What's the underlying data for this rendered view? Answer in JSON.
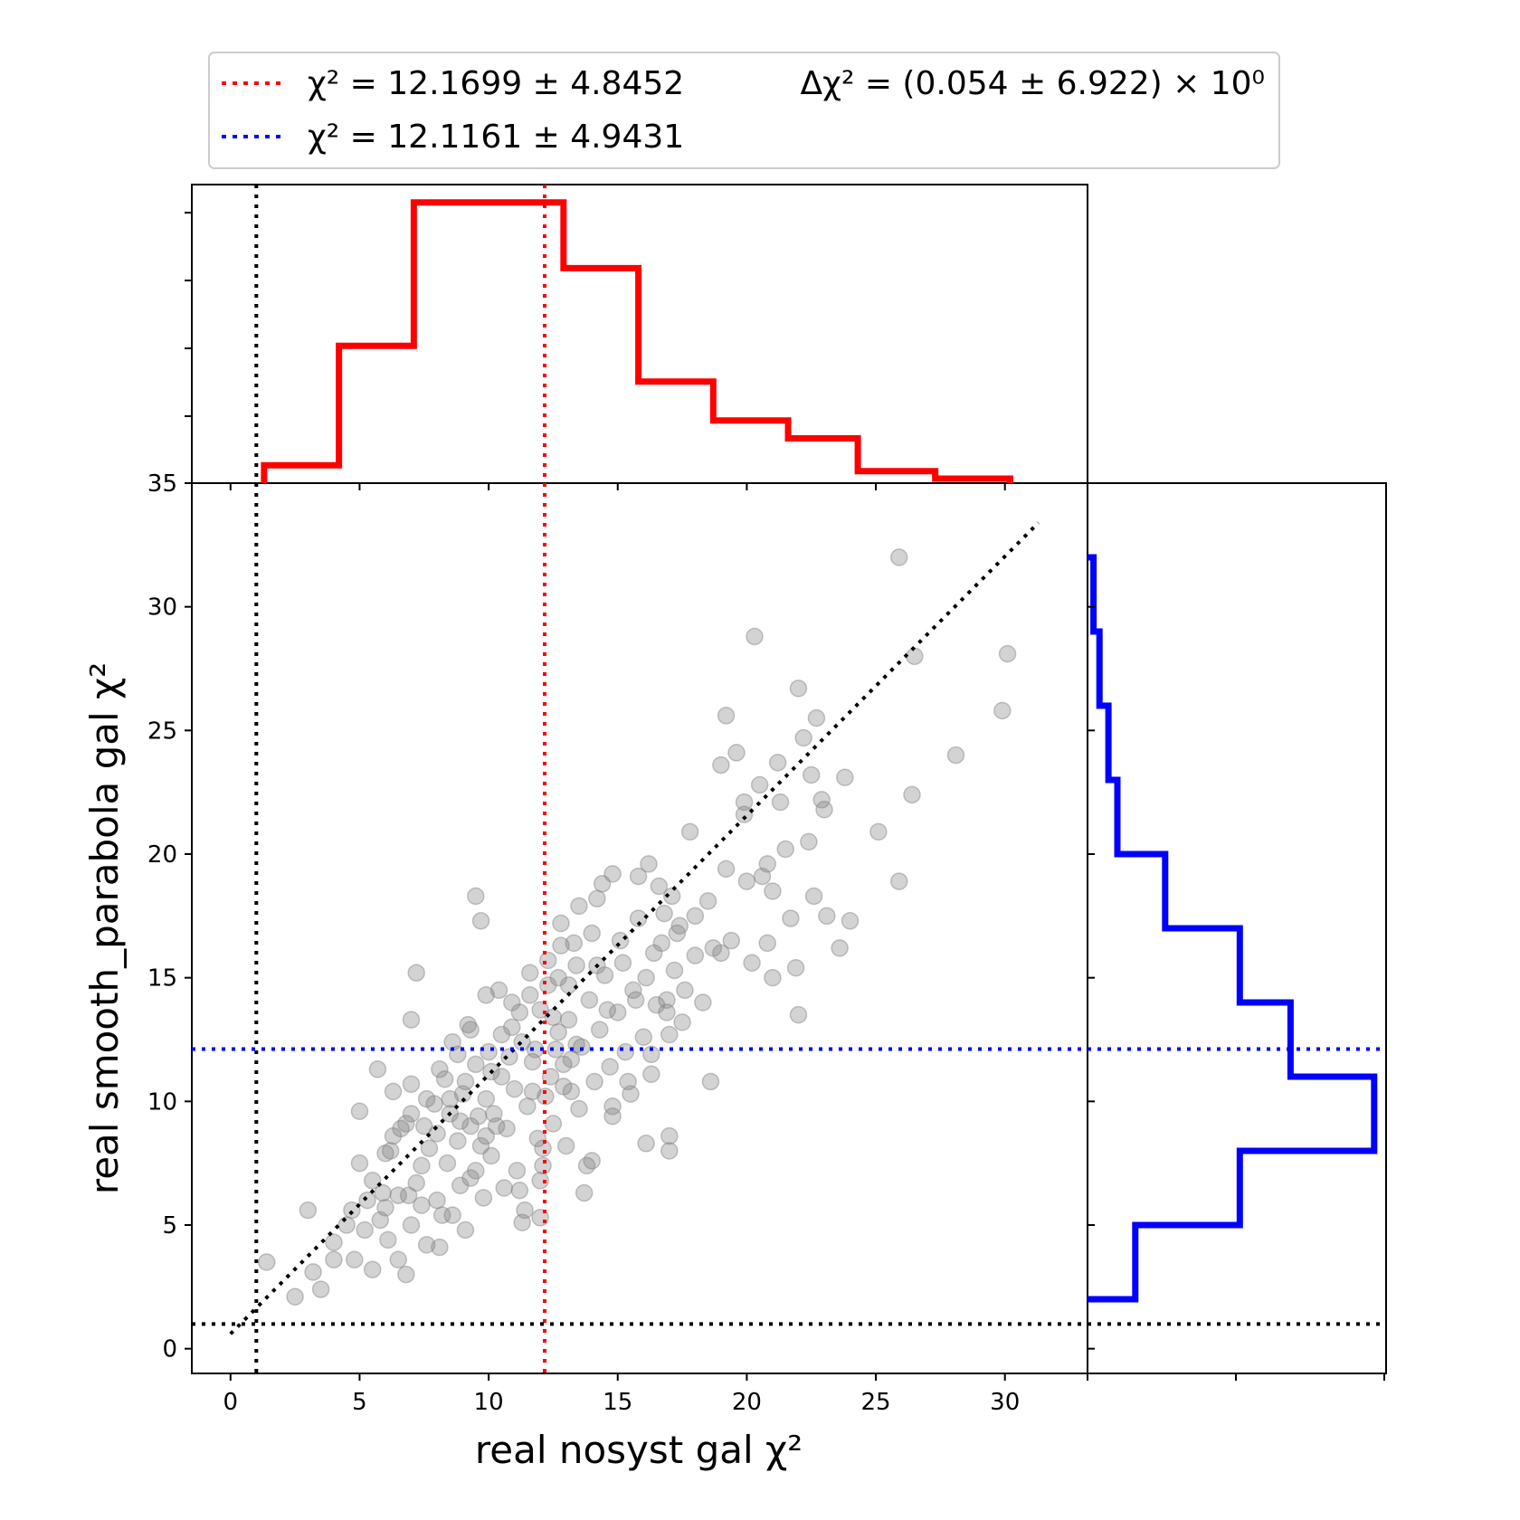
{
  "chart_data": {
    "type": "scatter",
    "title": "",
    "xlabel": "real nosyst gal χ²",
    "ylabel": "real smooth_parabola gal χ²",
    "xlim": [
      -1.5,
      33.2
    ],
    "ylim": [
      -1,
      35
    ],
    "x_ticks": [
      "0",
      "5",
      "10",
      "15",
      "20",
      "25",
      "30"
    ],
    "y_ticks": [
      "0",
      "5",
      "10",
      "15",
      "20",
      "25",
      "30",
      "35"
    ],
    "grid": false,
    "legend": {
      "placement": "top",
      "entries": [
        {
          "label": "χ² = 12.1699 ± 4.8452",
          "color": "#ff0000",
          "style": "dotted"
        },
        {
          "label": "χ² = 12.1161 ± 4.9431",
          "color": "#0000ff",
          "style": "dotted"
        }
      ],
      "annotation": "Δχ² = (0.054 ± 6.922) × 10⁰"
    },
    "reference_lines": {
      "x_vline_black": 1.0,
      "y_hline_black": 1.0,
      "x_mean_red": 12.1699,
      "y_mean_blue": 12.1161,
      "diagonal_black": [
        [
          0,
          0.6
        ],
        [
          31.3,
          33.4
        ]
      ]
    },
    "colors": {
      "x_marginal": "#ff0000",
      "y_marginal": "#0000ff",
      "points": "#808080",
      "reference": "#000000"
    },
    "x_histogram": {
      "bin_edges": [
        1.3,
        4.2,
        7.1,
        12.9,
        15.8,
        18.7,
        21.6,
        24.3,
        27.3,
        30.2
      ],
      "relative_heights": [
        0.06,
        0.46,
        0.94,
        0.72,
        0.34,
        0.21,
        0.15,
        0.04,
        0.015
      ]
    },
    "y_histogram": {
      "bin_edges": [
        2.0,
        5.0,
        8.0,
        11.0,
        14.0,
        17.0,
        20.0,
        23.0,
        26.0,
        29.0,
        32.0
      ],
      "relative_heights": [
        0.16,
        0.51,
        0.96,
        0.68,
        0.51,
        0.26,
        0.1,
        0.07,
        0.04,
        0.02
      ]
    },
    "points": [
      [
        1.4,
        3.5
      ],
      [
        2.5,
        2.1
      ],
      [
        3.0,
        5.6
      ],
      [
        3.5,
        2.4
      ],
      [
        3.2,
        3.1
      ],
      [
        4.0,
        4.3
      ],
      [
        4.5,
        5.0
      ],
      [
        4.8,
        3.6
      ],
      [
        5.0,
        7.5
      ],
      [
        5.2,
        4.8
      ],
      [
        5.5,
        3.2
      ],
      [
        5.5,
        6.8
      ],
      [
        5.8,
        5.2
      ],
      [
        6.0,
        7.9
      ],
      [
        6.1,
        4.4
      ],
      [
        6.3,
        8.6
      ],
      [
        6.5,
        6.2
      ],
      [
        6.5,
        3.6
      ],
      [
        6.8,
        9.1
      ],
      [
        7.0,
        5.0
      ],
      [
        7.0,
        10.7
      ],
      [
        7.2,
        6.7
      ],
      [
        7.4,
        7.4
      ],
      [
        7.6,
        4.2
      ],
      [
        7.7,
        8.1
      ],
      [
        7.9,
        9.9
      ],
      [
        8.0,
        6.0
      ],
      [
        8.1,
        11.3
      ],
      [
        8.2,
        5.4
      ],
      [
        8.4,
        7.5
      ],
      [
        8.5,
        9.5
      ],
      [
        8.6,
        12.4
      ],
      [
        8.8,
        8.4
      ],
      [
        8.9,
        6.6
      ],
      [
        9.0,
        10.3
      ],
      [
        9.1,
        4.8
      ],
      [
        9.2,
        13.1
      ],
      [
        9.3,
        9.0
      ],
      [
        9.5,
        7.2
      ],
      [
        9.5,
        11.5
      ],
      [
        9.7,
        8.2
      ],
      [
        9.8,
        6.1
      ],
      [
        9.9,
        10.1
      ],
      [
        10.0,
        12.0
      ],
      [
        10.1,
        7.8
      ],
      [
        10.2,
        9.5
      ],
      [
        10.4,
        14.5
      ],
      [
        10.5,
        11.0
      ],
      [
        10.6,
        6.5
      ],
      [
        10.7,
        8.9
      ],
      [
        10.9,
        13.0
      ],
      [
        11.0,
        10.5
      ],
      [
        11.1,
        7.2
      ],
      [
        11.3,
        12.4
      ],
      [
        11.4,
        5.6
      ],
      [
        11.5,
        9.8
      ],
      [
        11.6,
        15.2
      ],
      [
        11.7,
        11.6
      ],
      [
        11.9,
        8.5
      ],
      [
        12.0,
        13.7
      ],
      [
        12.0,
        6.8
      ],
      [
        12.2,
        10.2
      ],
      [
        12.3,
        14.7
      ],
      [
        12.4,
        11.0
      ],
      [
        12.5,
        9.1
      ],
      [
        12.7,
        12.8
      ],
      [
        12.8,
        16.3
      ],
      [
        12.9,
        10.6
      ],
      [
        13.0,
        8.2
      ],
      [
        13.1,
        13.3
      ],
      [
        13.2,
        11.7
      ],
      [
        13.4,
        15.5
      ],
      [
        13.5,
        9.7
      ],
      [
        13.6,
        12.2
      ],
      [
        13.8,
        7.4
      ],
      [
        13.9,
        14.1
      ],
      [
        14.0,
        16.8
      ],
      [
        14.1,
        10.8
      ],
      [
        14.3,
        12.9
      ],
      [
        14.4,
        18.8
      ],
      [
        14.5,
        15.1
      ],
      [
        14.7,
        11.4
      ],
      [
        14.8,
        9.4
      ],
      [
        15.0,
        13.6
      ],
      [
        15.1,
        16.5
      ],
      [
        15.3,
        12.0
      ],
      [
        15.5,
        10.3
      ],
      [
        15.6,
        14.5
      ],
      [
        15.8,
        17.4
      ],
      [
        16.0,
        12.6
      ],
      [
        16.1,
        15.0
      ],
      [
        16.2,
        19.6
      ],
      [
        16.3,
        11.1
      ],
      [
        16.5,
        13.9
      ],
      [
        16.7,
        16.4
      ],
      [
        16.9,
        14.1
      ],
      [
        17.0,
        12.7
      ],
      [
        17.1,
        18.3
      ],
      [
        17.2,
        15.3
      ],
      [
        17.4,
        17.1
      ],
      [
        17.5,
        13.2
      ],
      [
        17.8,
        20.9
      ],
      [
        18.0,
        15.9
      ],
      [
        18.3,
        14.0
      ],
      [
        18.5,
        18.1
      ],
      [
        18.7,
        16.2
      ],
      [
        19.0,
        23.6
      ],
      [
        19.2,
        19.4
      ],
      [
        19.4,
        16.5
      ],
      [
        19.6,
        24.1
      ],
      [
        19.9,
        21.6
      ],
      [
        20.0,
        18.9
      ],
      [
        20.2,
        15.6
      ],
      [
        20.3,
        28.8
      ],
      [
        20.5,
        22.8
      ],
      [
        20.6,
        19.1
      ],
      [
        20.8,
        16.4
      ],
      [
        21.0,
        15.0
      ],
      [
        21.3,
        22.1
      ],
      [
        21.5,
        20.2
      ],
      [
        21.7,
        17.4
      ],
      [
        21.9,
        15.4
      ],
      [
        22.0,
        26.7
      ],
      [
        22.2,
        24.7
      ],
      [
        22.4,
        20.5
      ],
      [
        22.6,
        18.3
      ],
      [
        22.7,
        25.5
      ],
      [
        22.9,
        22.2
      ],
      [
        23.1,
        17.5
      ],
      [
        23.6,
        16.2
      ],
      [
        23.8,
        23.1
      ],
      [
        24.0,
        17.3
      ],
      [
        25.1,
        20.9
      ],
      [
        25.9,
        32.0
      ],
      [
        25.9,
        18.9
      ],
      [
        26.4,
        22.4
      ],
      [
        26.5,
        28.0
      ],
      [
        28.1,
        24.0
      ],
      [
        29.9,
        25.8
      ],
      [
        30.1,
        28.1
      ],
      [
        7.2,
        15.2
      ],
      [
        7.0,
        13.3
      ],
      [
        6.3,
        10.4
      ],
      [
        5.7,
        11.3
      ],
      [
        5.0,
        9.6
      ],
      [
        4.7,
        5.6
      ],
      [
        4.0,
        3.6
      ],
      [
        6.8,
        3.0
      ],
      [
        8.1,
        4.1
      ],
      [
        9.5,
        18.3
      ],
      [
        9.7,
        17.3
      ],
      [
        12.3,
        15.7
      ],
      [
        12.1,
        8.1
      ],
      [
        12.0,
        5.3
      ],
      [
        11.3,
        5.1
      ],
      [
        11.2,
        6.4
      ],
      [
        12.1,
        7.4
      ],
      [
        13.7,
        6.3
      ],
      [
        14.0,
        7.6
      ],
      [
        14.8,
        9.8
      ],
      [
        15.4,
        10.8
      ],
      [
        16.1,
        8.3
      ],
      [
        16.3,
        11.9
      ],
      [
        17.0,
        8.6
      ],
      [
        17.0,
        8.0
      ],
      [
        18.6,
        10.8
      ],
      [
        16.8,
        17.6
      ],
      [
        16.6,
        18.7
      ],
      [
        15.8,
        19.1
      ],
      [
        14.8,
        19.2
      ],
      [
        14.2,
        18.2
      ],
      [
        13.5,
        17.9
      ],
      [
        12.8,
        17.2
      ],
      [
        13.1,
        14.7
      ],
      [
        12.5,
        13.4
      ],
      [
        12.9,
        11.5
      ],
      [
        13.2,
        10.4
      ],
      [
        11.8,
        12.1
      ],
      [
        11.2,
        13.6
      ],
      [
        10.9,
        14.0
      ],
      [
        9.9,
        14.3
      ],
      [
        9.3,
        12.9
      ],
      [
        8.8,
        11.9
      ],
      [
        8.3,
        10.9
      ],
      [
        7.6,
        10.1
      ],
      [
        7.0,
        9.5
      ],
      [
        6.6,
        8.9
      ],
      [
        6.2,
        8.0
      ],
      [
        5.9,
        6.3
      ],
      [
        5.3,
        6.0
      ],
      [
        6.0,
        5.7
      ],
      [
        6.9,
        6.2
      ],
      [
        7.4,
        5.8
      ],
      [
        8.6,
        5.4
      ],
      [
        9.3,
        6.9
      ],
      [
        9.9,
        8.6
      ],
      [
        10.3,
        9.0
      ],
      [
        8.9,
        9.2
      ],
      [
        8.5,
        10.1
      ],
      [
        9.1,
        10.8
      ],
      [
        9.6,
        9.4
      ],
      [
        8.0,
        8.7
      ],
      [
        7.5,
        9.0
      ],
      [
        10.8,
        11.8
      ],
      [
        11.7,
        10.4
      ],
      [
        12.6,
        12.1
      ],
      [
        13.4,
        12.3
      ],
      [
        14.6,
        13.7
      ],
      [
        15.7,
        14.1
      ],
      [
        16.9,
        13.6
      ],
      [
        17.6,
        14.5
      ],
      [
        17.3,
        16.8
      ],
      [
        16.4,
        16.0
      ],
      [
        15.2,
        15.6
      ],
      [
        14.2,
        15.5
      ],
      [
        13.3,
        16.4
      ],
      [
        12.7,
        15.0
      ],
      [
        11.6,
        14.3
      ],
      [
        10.5,
        12.7
      ],
      [
        10.1,
        11.2
      ],
      [
        19.9,
        22.1
      ],
      [
        21.2,
        23.7
      ],
      [
        20.8,
        19.6
      ],
      [
        22.5,
        23.2
      ],
      [
        21.0,
        18.5
      ],
      [
        22.0,
        13.5
      ],
      [
        23.0,
        21.8
      ],
      [
        19.2,
        25.6
      ],
      [
        19.0,
        16.0
      ],
      [
        18.0,
        17.5
      ]
    ]
  }
}
